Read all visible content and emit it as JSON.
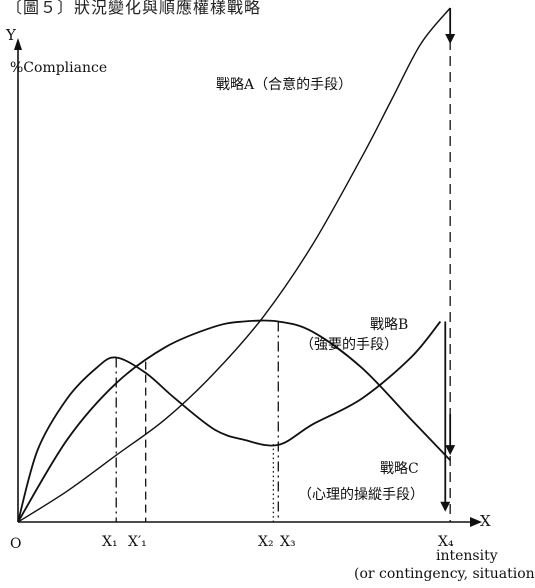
{
  "header": {
    "title": "〔圖５〕狀況變化與順應權樣戰略"
  },
  "chart_data": {
    "type": "line",
    "title": "〔圖５〕狀況變化與順應權樣戰略",
    "y_axis": {
      "letter": "Y",
      "label": "%Compliance"
    },
    "x_axis": {
      "letter": "X",
      "label": "intensity",
      "sublabel": "(or contingency,  situation)",
      "origin_label": "O",
      "ticks": [
        {
          "label": "X₁",
          "x": 1.0
        },
        {
          "label": "X′₁",
          "x": 1.3
        },
        {
          "label": "X₂",
          "x": 2.6
        },
        {
          "label": "X₃",
          "x": 2.65
        },
        {
          "label": "X₄",
          "x": 4.4
        }
      ]
    },
    "xlim": [
      0,
      4.5
    ],
    "ylim": [
      0,
      1
    ],
    "grid": false,
    "series": [
      {
        "name": "戰略A（合意的手段）",
        "x": [
          0,
          0.5,
          1.0,
          1.5,
          2.0,
          2.5,
          3.0,
          3.5,
          3.8,
          4.1,
          4.4
        ],
        "y": [
          0,
          0.06,
          0.13,
          0.2,
          0.29,
          0.4,
          0.54,
          0.71,
          0.82,
          0.93,
          1.0
        ]
      },
      {
        "name": "戰略B（強要的手段）",
        "x": [
          0,
          0.5,
          1.0,
          1.5,
          2.0,
          2.3,
          2.65,
          3.0,
          3.5,
          4.0,
          4.4
        ],
        "y": [
          0,
          0.16,
          0.27,
          0.34,
          0.38,
          0.39,
          0.39,
          0.37,
          0.3,
          0.2,
          0.12
        ]
      },
      {
        "name": "戰略C（心理的操縱手段）",
        "x": [
          0,
          0.2,
          0.5,
          0.8,
          1.0,
          1.3,
          1.6,
          2.0,
          2.3,
          2.65,
          3.0,
          3.5,
          4.0,
          4.3
        ],
        "y": [
          0,
          0.14,
          0.24,
          0.3,
          0.32,
          0.29,
          0.24,
          0.18,
          0.16,
          0.15,
          0.19,
          0.24,
          0.32,
          0.39
        ]
      }
    ],
    "annotations": [
      {
        "text": "戰略A（合意的手段）",
        "series": "戰略A（合意的手段）"
      },
      {
        "text": "戰略B",
        "series": "戰略B（強要的手段）"
      },
      {
        "text": "（強要的手段）",
        "series": "戰略B（強要的手段）"
      },
      {
        "text": "戰略C",
        "series": "戰略C（心理的操縱手段）"
      },
      {
        "text": "（心理的操縱手段）",
        "series": "戰略C（心理的操縱手段）"
      }
    ]
  }
}
